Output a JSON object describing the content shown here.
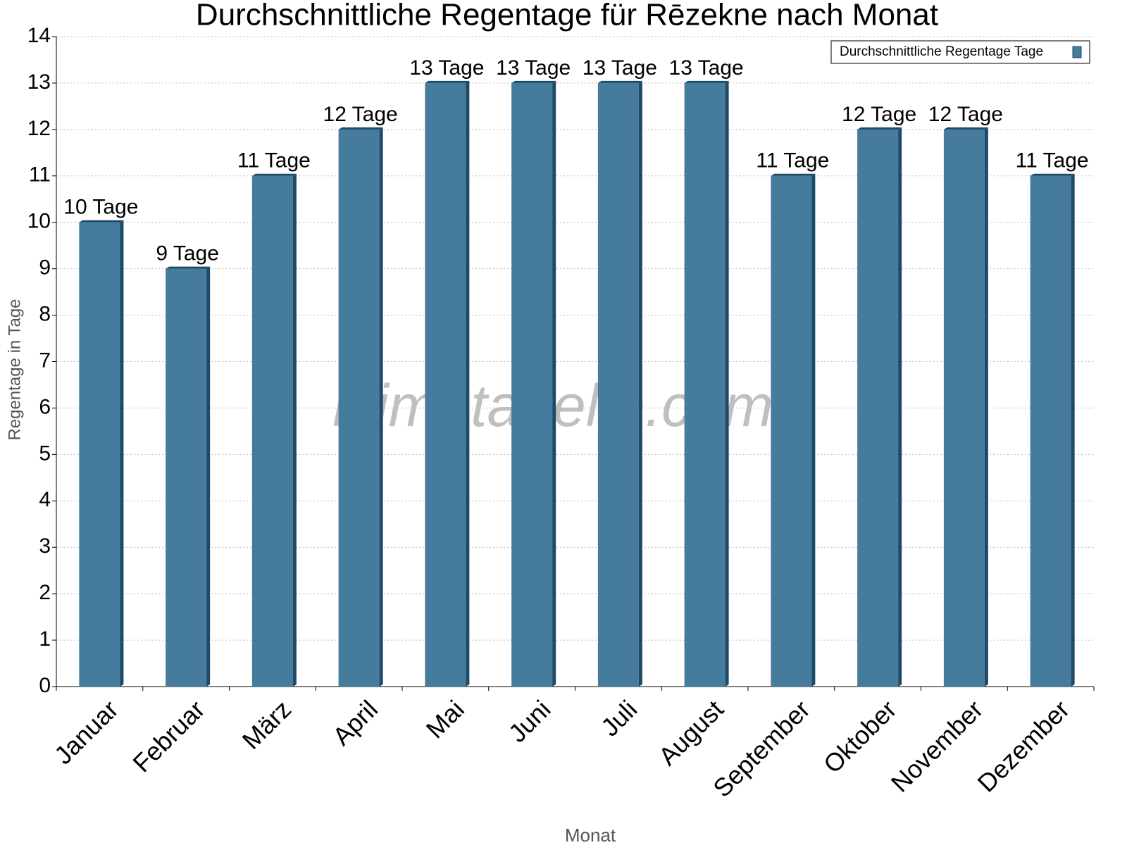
{
  "chart_data": {
    "type": "bar",
    "title": "Durchschnittliche Regentage für Rēzekne nach Monat",
    "x_label": "Monat",
    "y_label": "Regentage in Tage",
    "watermark": "klimatabelle.com",
    "categories": [
      "Januar",
      "Februar",
      "März",
      "April",
      "Mai",
      "Juni",
      "Juli",
      "August",
      "September",
      "Oktober",
      "November",
      "Dezember"
    ],
    "series": [
      {
        "name": "Durchschnittliche Regentage Tage",
        "color": "#457b9d",
        "values": [
          10,
          9,
          11,
          12,
          13,
          13,
          13,
          13,
          11,
          12,
          12,
          11
        ],
        "value_labels": [
          "10 Tage",
          "9 Tage",
          "11 Tage",
          "12 Tage",
          "13 Tage",
          "13 Tage",
          "13 Tage",
          "13 Tage",
          "11 Tage",
          "12 Tage",
          "12 Tage",
          "11 Tage"
        ]
      }
    ],
    "ylim": [
      0,
      14
    ],
    "yticks": [
      0,
      1,
      2,
      3,
      4,
      5,
      6,
      7,
      8,
      9,
      10,
      11,
      12,
      13,
      14
    ],
    "grid": true,
    "legend": "upper right"
  }
}
